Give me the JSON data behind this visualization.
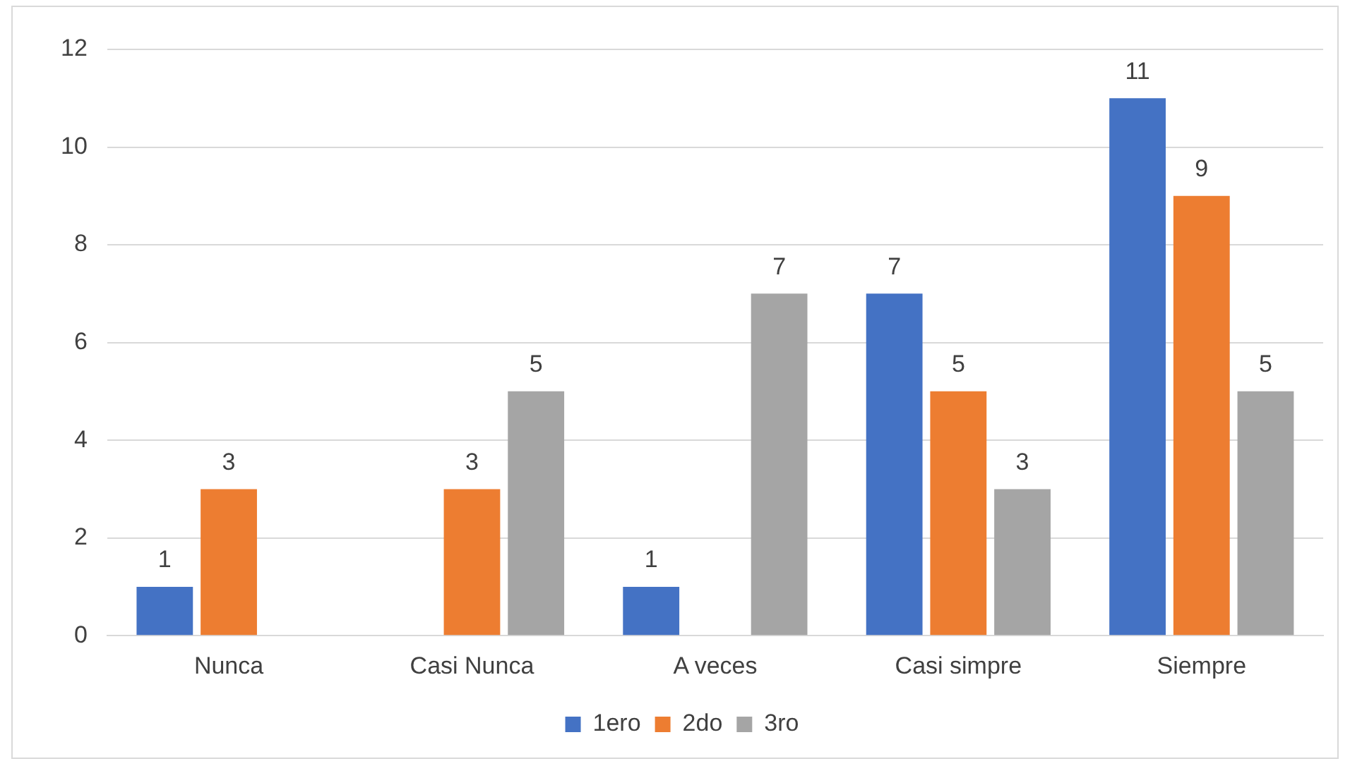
{
  "chart_data": {
    "type": "bar",
    "categories": [
      "Nunca",
      "Casi Nunca",
      "A veces",
      "Casi simpre",
      "Siempre"
    ],
    "series": [
      {
        "name": "1ero",
        "color": "#4472c4",
        "values": [
          1,
          null,
          1,
          7,
          11
        ]
      },
      {
        "name": "2do",
        "color": "#ed7d31",
        "values": [
          3,
          3,
          null,
          5,
          9
        ]
      },
      {
        "name": "3ro",
        "color": "#a5a5a5",
        "values": [
          null,
          5,
          7,
          3,
          5
        ]
      }
    ],
    "ylim": [
      0,
      12
    ],
    "yticks": [
      0,
      2,
      4,
      6,
      8,
      10,
      12
    ],
    "grid": "y",
    "legend": "bottom",
    "data_labels": true
  }
}
